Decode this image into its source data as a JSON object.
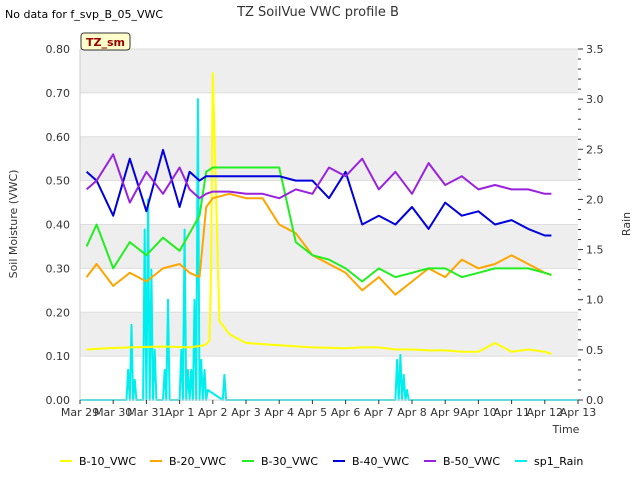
{
  "chart_data": {
    "type": "line",
    "title": "TZ SoilVue VWC profile B",
    "note": "No data for f_svp_B_05_VWC",
    "badge": "TZ_sm",
    "xlabel": "Time",
    "ylabel": "Soil Moisture (VWC)",
    "y2label": "Rain",
    "ylim": [
      0,
      0.8
    ],
    "y2lim": [
      0,
      3.5
    ],
    "xlim": [
      0,
      15
    ],
    "x_ticks": [
      "Mar 29",
      "Mar 30",
      "Mar 31",
      "Apr 1",
      "Apr 2",
      "Apr 3",
      "Apr 4",
      "Apr 5",
      "Apr 6",
      "Apr 7",
      "Apr 8",
      "Apr 9",
      "Apr 10",
      "Apr 11",
      "Apr 12",
      "Apr 13"
    ],
    "y_ticks": [
      "0.00",
      "0.10",
      "0.20",
      "0.30",
      "0.40",
      "0.50",
      "0.60",
      "0.70",
      "0.80"
    ],
    "y2_ticks": [
      "0.0",
      "0.5",
      "1.0",
      "1.5",
      "2.0",
      "2.5",
      "3.0",
      "3.5"
    ],
    "grid": "horizontal bands",
    "legend_position": "bottom",
    "series": [
      {
        "name": "B-10_VWC",
        "color": "#ffff00",
        "axis": "left",
        "x": [
          0.2,
          0.8,
          1.5,
          2.5,
          3.3,
          3.75,
          3.9,
          3.95,
          4.0,
          4.2,
          4.5,
          5,
          6,
          7,
          8,
          8.5,
          9,
          9.5,
          10,
          10.5,
          11,
          11.5,
          12,
          12.5,
          13,
          13.5,
          14,
          14.2
        ],
        "y": [
          0.115,
          0.118,
          0.12,
          0.122,
          0.12,
          0.125,
          0.135,
          0.3,
          0.745,
          0.18,
          0.15,
          0.13,
          0.125,
          0.12,
          0.118,
          0.12,
          0.12,
          0.115,
          0.115,
          0.113,
          0.113,
          0.11,
          0.11,
          0.13,
          0.11,
          0.115,
          0.11,
          0.105
        ]
      },
      {
        "name": "B-20_VWC",
        "color": "#ffa500",
        "axis": "left",
        "x": [
          0.2,
          0.5,
          1.0,
          1.5,
          2.0,
          2.5,
          3.0,
          3.3,
          3.6,
          3.8,
          4.0,
          4.5,
          5,
          5.5,
          6,
          6.5,
          7,
          7.5,
          8,
          8.5,
          9,
          9.5,
          10,
          10.5,
          11,
          11.5,
          12,
          12.5,
          13,
          13.5,
          14,
          14.2
        ],
        "y": [
          0.28,
          0.31,
          0.26,
          0.29,
          0.27,
          0.3,
          0.31,
          0.29,
          0.28,
          0.44,
          0.46,
          0.47,
          0.46,
          0.46,
          0.4,
          0.38,
          0.33,
          0.31,
          0.29,
          0.25,
          0.28,
          0.24,
          0.27,
          0.3,
          0.28,
          0.32,
          0.3,
          0.31,
          0.33,
          0.31,
          0.29,
          0.285
        ]
      },
      {
        "name": "B-30_VWC",
        "color": "#22ee22",
        "axis": "left",
        "x": [
          0.2,
          0.5,
          1.0,
          1.5,
          2.0,
          2.5,
          3.0,
          3.3,
          3.6,
          3.8,
          4.0,
          4.5,
          5,
          5.5,
          6,
          6.5,
          7,
          7.5,
          8,
          8.5,
          9,
          9.5,
          10,
          10.5,
          11,
          11.5,
          12,
          12.5,
          13,
          13.5,
          14,
          14.2
        ],
        "y": [
          0.35,
          0.4,
          0.3,
          0.36,
          0.33,
          0.37,
          0.34,
          0.38,
          0.42,
          0.52,
          0.53,
          0.53,
          0.53,
          0.53,
          0.53,
          0.36,
          0.33,
          0.32,
          0.3,
          0.27,
          0.3,
          0.28,
          0.29,
          0.3,
          0.3,
          0.28,
          0.29,
          0.3,
          0.3,
          0.3,
          0.29,
          0.285
        ]
      },
      {
        "name": "B-40_VWC",
        "color": "#0000dd",
        "axis": "left",
        "x": [
          0.2,
          0.5,
          1.0,
          1.5,
          2.0,
          2.5,
          3.0,
          3.3,
          3.6,
          3.8,
          4.0,
          4.5,
          5,
          5.5,
          6,
          6.5,
          7,
          7.5,
          8,
          8.5,
          9,
          9.5,
          10,
          10.5,
          11,
          11.5,
          12,
          12.5,
          13,
          13.5,
          14,
          14.2
        ],
        "y": [
          0.52,
          0.5,
          0.42,
          0.55,
          0.43,
          0.57,
          0.44,
          0.52,
          0.5,
          0.51,
          0.51,
          0.51,
          0.51,
          0.51,
          0.51,
          0.5,
          0.5,
          0.46,
          0.52,
          0.4,
          0.42,
          0.4,
          0.44,
          0.39,
          0.45,
          0.42,
          0.43,
          0.4,
          0.41,
          0.39,
          0.375,
          0.375
        ]
      },
      {
        "name": "B-50_VWC",
        "color": "#9922dd",
        "axis": "left",
        "x": [
          0.2,
          0.5,
          1.0,
          1.5,
          2.0,
          2.5,
          3.0,
          3.3,
          3.6,
          3.8,
          4.0,
          4.5,
          5,
          5.5,
          6,
          6.5,
          7,
          7.5,
          8,
          8.5,
          9,
          9.5,
          10,
          10.5,
          11,
          11.5,
          12,
          12.5,
          13,
          13.5,
          14,
          14.2
        ],
        "y": [
          0.48,
          0.5,
          0.56,
          0.45,
          0.52,
          0.47,
          0.53,
          0.48,
          0.46,
          0.47,
          0.475,
          0.475,
          0.47,
          0.47,
          0.46,
          0.48,
          0.47,
          0.53,
          0.51,
          0.55,
          0.48,
          0.52,
          0.47,
          0.54,
          0.49,
          0.51,
          0.48,
          0.49,
          0.48,
          0.48,
          0.47,
          0.47
        ]
      },
      {
        "name": "sp1_Rain",
        "color": "#00eeee",
        "axis": "right",
        "x": [
          0,
          1.4,
          1.45,
          1.5,
          1.55,
          1.6,
          1.65,
          1.7,
          1.9,
          1.95,
          2.0,
          2.05,
          2.1,
          2.15,
          2.2,
          2.25,
          2.3,
          2.5,
          2.55,
          2.6,
          2.65,
          2.7,
          3.0,
          3.05,
          3.1,
          3.15,
          3.2,
          3.25,
          3.3,
          3.35,
          3.4,
          3.45,
          3.5,
          3.55,
          3.6,
          3.65,
          3.7,
          3.75,
          3.8,
          3.85,
          4.3,
          4.35,
          4.4,
          4.45,
          9.5,
          9.55,
          9.6,
          9.65,
          9.7,
          9.75,
          9.8,
          9.85,
          9.9,
          15
        ],
        "y": [
          0,
          0,
          0.3,
          0,
          0.75,
          0,
          0.2,
          0,
          0,
          1.7,
          0,
          2.0,
          0,
          1.3,
          0,
          0.5,
          0,
          0,
          0.3,
          0,
          1.0,
          0,
          0,
          0.5,
          0,
          1.7,
          0,
          0.3,
          0,
          0.3,
          0,
          1.0,
          0,
          3.0,
          0,
          0.4,
          0,
          0.3,
          0,
          0.1,
          0,
          0.25,
          0,
          0,
          0,
          0.4,
          0,
          0.45,
          0,
          0.25,
          0,
          0.1,
          0,
          0
        ]
      }
    ]
  }
}
